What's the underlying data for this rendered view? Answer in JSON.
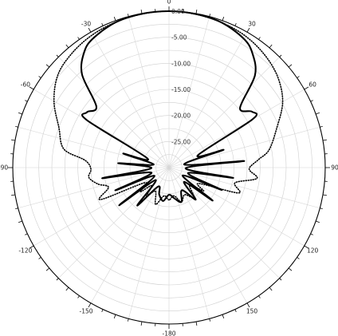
{
  "chart_data": {
    "type": "polar-line",
    "title": "",
    "angle_ticks": [
      0,
      30,
      60,
      90,
      120,
      150,
      180,
      -150,
      -120,
      -90,
      -60,
      -30
    ],
    "angle_tick_labels": [
      "0",
      "30",
      "60",
      "90",
      "120",
      "150",
      "-180",
      "-150",
      "-120",
      "-90",
      "-60",
      "-30"
    ],
    "radial_range": [
      -30,
      0
    ],
    "radial_ticks": [
      0,
      -5,
      -10,
      -15,
      -20,
      -25
    ],
    "radial_tick_labels": [
      "0.00",
      "-5.00",
      "-10.00",
      "-15.00",
      "-20.00",
      "-25.00"
    ],
    "minor_tick_step_deg": 5,
    "grid": true,
    "series": [
      {
        "style": "solid",
        "color": "#000000",
        "points": [
          [
            -180,
            -24.8
          ],
          [
            -170,
            -23.5
          ],
          [
            -160,
            -24.5
          ],
          [
            -150,
            -25.8
          ],
          [
            -140,
            -20.5
          ],
          [
            -133,
            -26.5
          ],
          [
            -127,
            -18.0
          ],
          [
            -120,
            -26.8
          ],
          [
            -113,
            -18.8
          ],
          [
            -106,
            -26.5
          ],
          [
            -99,
            -17.0
          ],
          [
            -92,
            -26.6
          ],
          [
            -85,
            -20.2
          ],
          [
            -79,
            -27.0
          ],
          [
            -73,
            -20.8
          ],
          [
            -67,
            -25.5
          ],
          [
            -60,
            -11.8
          ],
          [
            -56,
            -11.0
          ],
          [
            -50,
            -11.8
          ],
          [
            -43,
            -5.5
          ],
          [
            -36,
            -2.4
          ],
          [
            -30,
            -1.2
          ],
          [
            -20,
            -0.3
          ],
          [
            -10,
            -0.05
          ],
          [
            0,
            0.0
          ],
          [
            10,
            -0.1
          ],
          [
            20,
            -0.4
          ],
          [
            30,
            -1.4
          ],
          [
            36,
            -2.8
          ],
          [
            43,
            -5.8
          ],
          [
            50,
            -12.2
          ],
          [
            56,
            -10.8
          ],
          [
            60,
            -11.5
          ],
          [
            67,
            -24.0
          ],
          [
            72,
            -19.0
          ],
          [
            79,
            -27.0
          ],
          [
            85,
            -15.5
          ],
          [
            92,
            -26.8
          ],
          [
            99,
            -17.5
          ],
          [
            106,
            -26.2
          ],
          [
            113,
            -19.0
          ],
          [
            120,
            -27.0
          ],
          [
            127,
            -19.5
          ],
          [
            133,
            -26.0
          ],
          [
            140,
            -22.0
          ],
          [
            150,
            -25.0
          ],
          [
            160,
            -23.0
          ],
          [
            170,
            -24.0
          ],
          [
            180,
            -24.8
          ]
        ]
      },
      {
        "style": "dotted",
        "color": "#000000",
        "points": [
          [
            -180,
            -23.8
          ],
          [
            -170,
            -24.5
          ],
          [
            -160,
            -22.5
          ],
          [
            -150,
            -24.8
          ],
          [
            -142,
            -23.0
          ],
          [
            -136,
            -25.2
          ],
          [
            -130,
            -22.8
          ],
          [
            -122,
            -24.5
          ],
          [
            -115,
            -15.5
          ],
          [
            -108,
            -17.8
          ],
          [
            -103,
            -16.0
          ],
          [
            -97,
            -14.5
          ],
          [
            -91,
            -15.0
          ],
          [
            -85,
            -13.8
          ],
          [
            -80,
            -9.5
          ],
          [
            -70,
            -7.5
          ],
          [
            -60,
            -4.5
          ],
          [
            -50,
            -2.2
          ],
          [
            -40,
            -1.2
          ],
          [
            -30,
            -0.6
          ],
          [
            -20,
            -0.3
          ],
          [
            -10,
            -0.1
          ],
          [
            0,
            0.0
          ],
          [
            10,
            -0.15
          ],
          [
            20,
            -0.4
          ],
          [
            30,
            -0.8
          ],
          [
            40,
            -1.6
          ],
          [
            50,
            -2.8
          ],
          [
            60,
            -4.8
          ],
          [
            70,
            -8.0
          ],
          [
            80,
            -10.5
          ],
          [
            85,
            -12.8
          ],
          [
            91,
            -14.6
          ],
          [
            97,
            -13.0
          ],
          [
            103,
            -17.0
          ],
          [
            110,
            -15.8
          ],
          [
            118,
            -23.5
          ],
          [
            124,
            -22.0
          ],
          [
            130,
            -24.8
          ],
          [
            140,
            -22.5
          ],
          [
            150,
            -24.0
          ],
          [
            160,
            -23.0
          ],
          [
            170,
            -24.5
          ],
          [
            180,
            -23.8
          ]
        ]
      }
    ]
  }
}
